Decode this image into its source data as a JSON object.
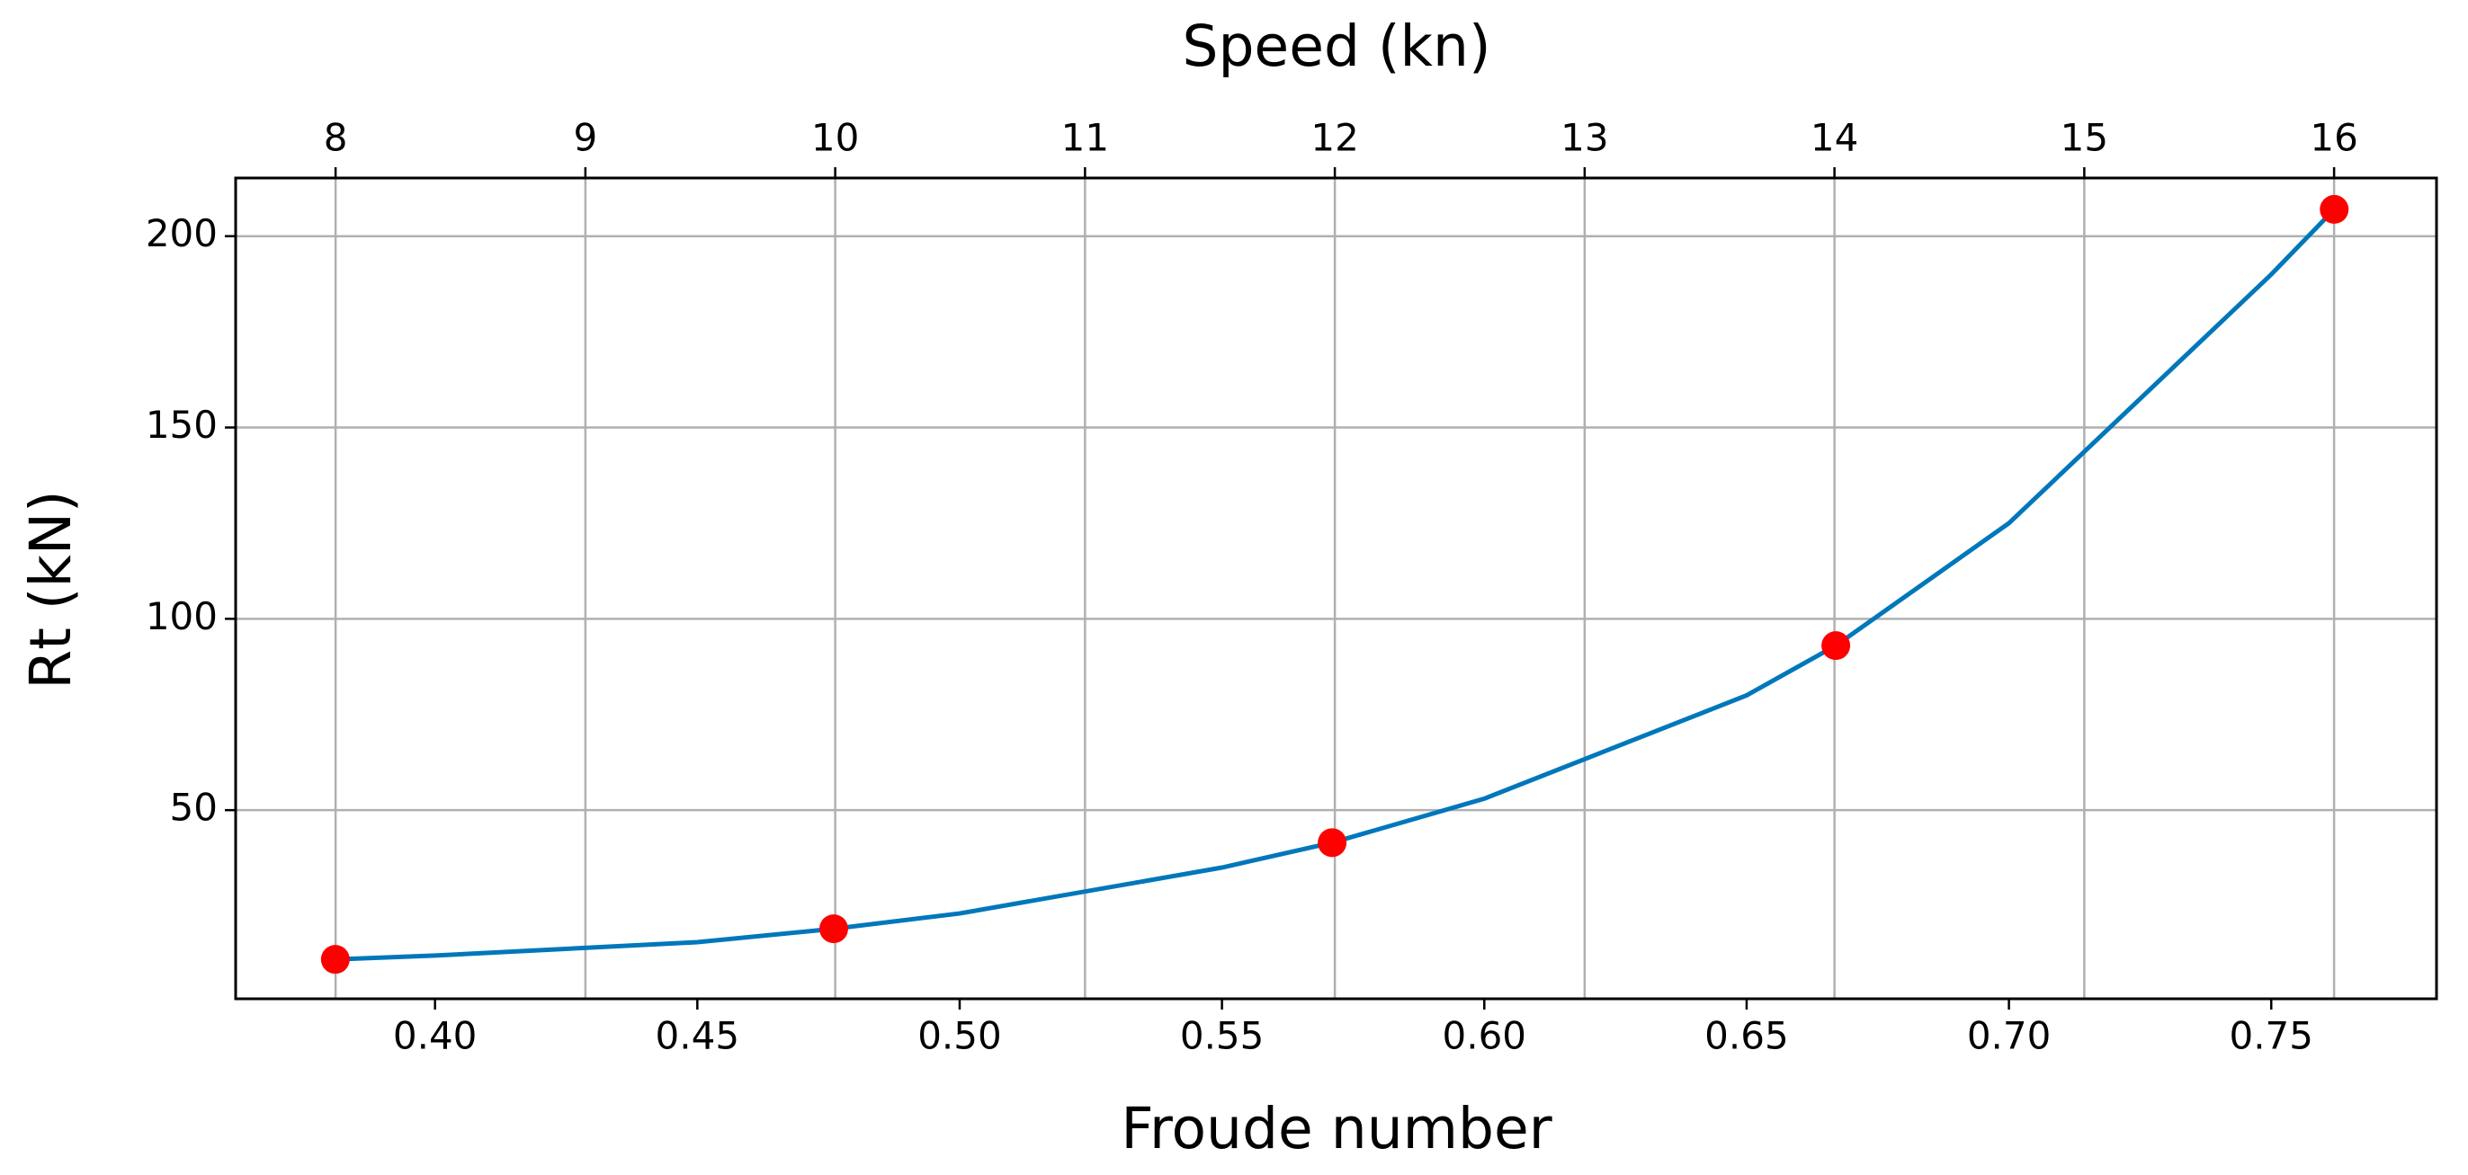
{
  "chart_data": {
    "type": "line",
    "x_label": "Froude number",
    "x2_label": "Speed (kn)",
    "y_label": "Rt (kN)",
    "xlim": [
      0.362,
      0.7815
    ],
    "xticks": [
      {
        "value": 0.4,
        "label": "0.40"
      },
      {
        "value": 0.45,
        "label": "0.45"
      },
      {
        "value": 0.5,
        "label": "0.50"
      },
      {
        "value": 0.55,
        "label": "0.55"
      },
      {
        "value": 0.6,
        "label": "0.60"
      },
      {
        "value": 0.65,
        "label": "0.65"
      },
      {
        "value": 0.7,
        "label": "0.70"
      },
      {
        "value": 0.75,
        "label": "0.75"
      }
    ],
    "x2lim": [
      7.6,
      16.41
    ],
    "x2ticks": [
      8,
      9,
      10,
      11,
      12,
      13,
      14,
      15,
      16
    ],
    "ylim": [
      0.7,
      215.2
    ],
    "yticks": [
      50,
      100,
      150,
      200
    ],
    "grid_axes": [
      "x2",
      "y"
    ],
    "series": [
      {
        "style": "line",
        "color": "#0077bb",
        "x": [
          0.381,
          0.4,
          0.45,
          0.476,
          0.5,
          0.55,
          0.571,
          0.6,
          0.65,
          0.667,
          0.7,
          0.75,
          0.762
        ],
        "values": [
          11,
          12,
          15.5,
          19,
          23,
          35,
          41.5,
          53,
          80,
          93,
          125,
          190,
          207
        ]
      },
      {
        "style": "markers",
        "color": "#ff0000",
        "x": [
          0.381,
          0.476,
          0.571,
          0.667,
          0.762
        ],
        "values": [
          11,
          19,
          41.5,
          93,
          207
        ]
      }
    ]
  }
}
